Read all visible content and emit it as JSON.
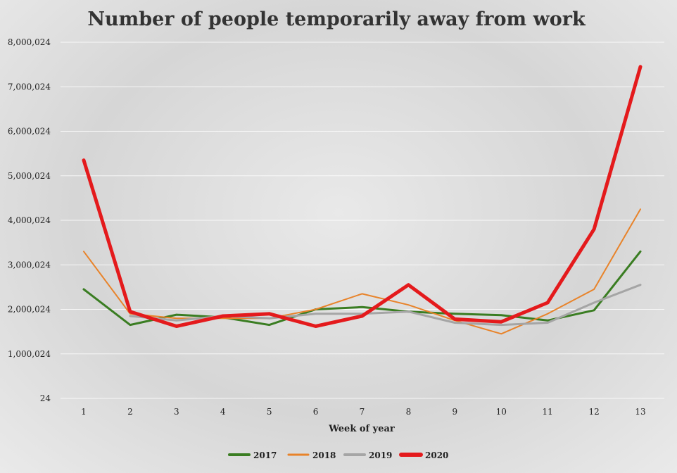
{
  "chart_data": {
    "type": "line",
    "title": "Number of people temporarily away from work",
    "xlabel": "Week of year",
    "ylabel": "",
    "x": [
      1,
      2,
      3,
      4,
      5,
      6,
      7,
      8,
      9,
      10,
      11,
      12,
      13
    ],
    "y_ticks": [
      "24",
      "1,000,024",
      "2,000,024",
      "3,000,024",
      "4,000,024",
      "5,000,024",
      "6,000,024",
      "7,000,024",
      "8,000,024"
    ],
    "ylim": [
      24,
      8000024
    ],
    "grid": "horizontal",
    "legend_position": "bottom",
    "series": [
      {
        "name": "2017",
        "color": "#3a7d22",
        "width": 3,
        "values": [
          2450000,
          1650000,
          1880000,
          1820000,
          1650000,
          2000000,
          2050000,
          1950000,
          1900000,
          1870000,
          1750000,
          1980000,
          3300000
        ]
      },
      {
        "name": "2018",
        "color": "#e8832a",
        "width": 2,
        "values": [
          3300000,
          1900000,
          1800000,
          1800000,
          1800000,
          2000000,
          2350000,
          2100000,
          1750000,
          1450000,
          1900000,
          2450000,
          4250000
        ]
      },
      {
        "name": "2019",
        "color": "#a5a5a5",
        "width": 3,
        "values": [
          null,
          1850000,
          1750000,
          1850000,
          1800000,
          1900000,
          1900000,
          1950000,
          1700000,
          1650000,
          1700000,
          2150000,
          2550000
        ]
      },
      {
        "name": "2020",
        "color": "#e41a1c",
        "width": 5,
        "values": [
          5350000,
          1950000,
          1620000,
          1850000,
          1900000,
          1620000,
          1850000,
          2550000,
          1780000,
          1720000,
          2150000,
          3800000,
          7450000
        ]
      }
    ]
  }
}
